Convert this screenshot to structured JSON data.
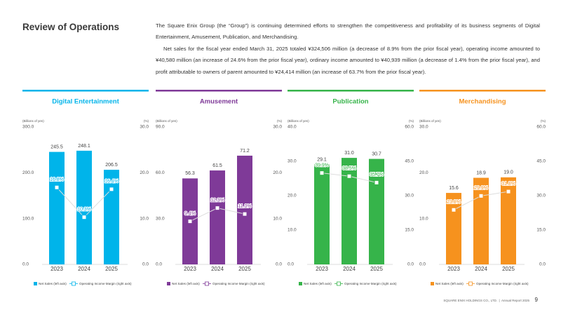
{
  "header": {
    "title": "Review of Operations"
  },
  "body": {
    "paragraphs": [
      "The Square Enix Group (the “Group”) is continuing determined efforts to strengthen the competitiveness and profitability of its business segments of Digital Entertainment, Amusement, Publication, and Merchandising.",
      "Net sales for the fiscal year ended March 31, 2025 totaled ¥324,506 million (a decrease of 8.9% from the prior fiscal year), operating income amounted to ¥40,580 million (an increase of 24.6% from the prior fiscal year), ordinary income amounted to ¥40,939 million (a decrease of 1.4% from the prior fiscal year), and profit attributable to owners of parent amounted to ¥24,414 million (an increase of 63.7% from the prior fiscal year)."
    ]
  },
  "chart_data": [
    {
      "type": "combo",
      "title": "Digital Entertainment",
      "ylabel": "(Billions of yen)",
      "y2label": "(%)",
      "categories": [
        "2023",
        "2024",
        "2025"
      ],
      "ylim": [
        0,
        300
      ],
      "yticks": [
        {
          "value": 0,
          "label": "0.0"
        },
        {
          "value": 100,
          "label": "100.0"
        },
        {
          "value": 200,
          "label": "200.0"
        },
        {
          "value": 300,
          "label": "300.0"
        }
      ],
      "y2lim": [
        0,
        30
      ],
      "y2ticks": [
        {
          "value": 0,
          "label": "0.0"
        },
        {
          "value": 10,
          "label": "10.0"
        },
        {
          "value": 20,
          "label": "20.0"
        },
        {
          "value": 30,
          "label": "30.0"
        }
      ],
      "series": [
        {
          "name": "Net Sales (left axis)",
          "type": "bar",
          "color": "#00b4ea",
          "values": [
            245.5,
            248.1,
            206.5
          ],
          "value_labels": [
            "245.5",
            "248.1",
            "206.5"
          ]
        },
        {
          "name": "Operating Income Margin (right axis)",
          "type": "line",
          "axis": "y2",
          "color": "#00b4ea",
          "values": [
            16.8,
            10.3,
            16.4
          ],
          "value_labels": [
            "16.8%",
            "10.3%",
            "16.4%"
          ]
        }
      ]
    },
    {
      "type": "combo",
      "title": "Amusement",
      "ylabel": "(Billions of yen)",
      "y2label": "(%)",
      "categories": [
        "2023",
        "2024",
        "2025"
      ],
      "ylim": [
        0,
        90
      ],
      "yticks": [
        {
          "value": 0,
          "label": "0.0"
        },
        {
          "value": 30,
          "label": "30.0"
        },
        {
          "value": 60,
          "label": "60.0"
        },
        {
          "value": 90,
          "label": "90.0"
        }
      ],
      "y2lim": [
        0,
        30
      ],
      "y2ticks": [
        {
          "value": 0,
          "label": "0.0"
        },
        {
          "value": 10,
          "label": "10.0"
        },
        {
          "value": 20,
          "label": "20.0"
        },
        {
          "value": 30,
          "label": "30.0"
        }
      ],
      "series": [
        {
          "name": "Net Sales (left axis)",
          "type": "bar",
          "color": "#7f3a98",
          "values": [
            56.3,
            61.5,
            71.2
          ],
          "value_labels": [
            "56.3",
            "61.5",
            "71.2"
          ]
        },
        {
          "name": "Operating Income Margin (right axis)",
          "type": "line",
          "axis": "y2",
          "color": "#7f3a98",
          "values": [
            9.4,
            12.3,
            11.0
          ],
          "value_labels": [
            "9.4%",
            "12.3%",
            "11.0%"
          ]
        }
      ]
    },
    {
      "type": "combo",
      "title": "Publication",
      "ylabel": "(Billions of yen)",
      "y2label": "(%)",
      "categories": [
        "2023",
        "2024",
        "2025"
      ],
      "ylim": [
        0,
        40
      ],
      "yticks": [
        {
          "value": 0,
          "label": "0.0"
        },
        {
          "value": 10,
          "label": "10.0"
        },
        {
          "value": 20,
          "label": "20.0"
        },
        {
          "value": 30,
          "label": "30.0"
        },
        {
          "value": 40,
          "label": "40.0"
        }
      ],
      "y2lim": [
        0,
        60
      ],
      "y2ticks": [
        {
          "value": 0,
          "label": "0.0"
        },
        {
          "value": 15,
          "label": "15.0"
        },
        {
          "value": 30,
          "label": "30.0"
        },
        {
          "value": 45,
          "label": "45.0"
        },
        {
          "value": 60,
          "label": "60.0"
        }
      ],
      "series": [
        {
          "name": "Net Sales (left axis)",
          "type": "bar",
          "color": "#36b44a",
          "values": [
            29.1,
            31.0,
            30.7
          ],
          "value_labels": [
            "29.1",
            "31.0",
            "30.7"
          ]
        },
        {
          "name": "Operating Income Margin (right axis)",
          "type": "line",
          "axis": "y2",
          "color": "#36b44a",
          "values": [
            39.9,
            38.5,
            35.7
          ],
          "value_labels": [
            "39.9%",
            "38.5%",
            "35.7%"
          ]
        }
      ]
    },
    {
      "type": "combo",
      "title": "Merchandising",
      "ylabel": "(Billions of yen)",
      "y2label": "(%)",
      "categories": [
        "2023",
        "2024",
        "2025"
      ],
      "ylim": [
        0,
        30
      ],
      "yticks": [
        {
          "value": 0,
          "label": "0.0"
        },
        {
          "value": 10,
          "label": "10.0"
        },
        {
          "value": 20,
          "label": "20.0"
        },
        {
          "value": 30,
          "label": "30.0"
        }
      ],
      "y2lim": [
        0,
        60
      ],
      "y2ticks": [
        {
          "value": 0,
          "label": "0.0"
        },
        {
          "value": 15,
          "label": "15.0"
        },
        {
          "value": 30,
          "label": "30.0"
        },
        {
          "value": 45,
          "label": "45.0"
        },
        {
          "value": 60,
          "label": "60.0"
        }
      ],
      "series": [
        {
          "name": "Net Sales (left axis)",
          "type": "bar",
          "color": "#f6921e",
          "values": [
            15.6,
            18.9,
            19.0
          ],
          "value_labels": [
            "15.6",
            "18.9",
            "19.0"
          ]
        },
        {
          "name": "Operating Income Margin (right axis)",
          "type": "line",
          "axis": "y2",
          "color": "#f6921e",
          "values": [
            23.8,
            29.9,
            31.8
          ],
          "value_labels": [
            "23.8%",
            "29.9%",
            "31.8%"
          ]
        }
      ]
    }
  ],
  "footer": {
    "company": "SQUARE ENIX HOLDINGS CO., LTD.",
    "report": "Annual Report 2025",
    "page": 9
  }
}
